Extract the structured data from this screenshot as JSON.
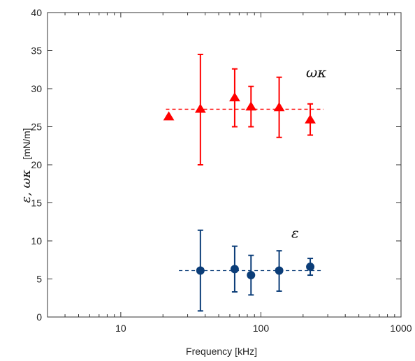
{
  "chart_data": {
    "type": "scatter",
    "xlabel": "Frequency [kHz]",
    "ylabel_symbols": "ε, ωκ",
    "ylabel_unit": "[mN/m]",
    "xscale": "log",
    "xlim": [
      3,
      1000
    ],
    "ylim": [
      0,
      40
    ],
    "x_ticks": [
      10,
      100,
      1000
    ],
    "x_tick_labels": [
      "10",
      "100",
      "1000"
    ],
    "y_ticks": [
      0,
      5,
      10,
      15,
      20,
      25,
      30,
      35,
      40
    ],
    "y_tick_labels": [
      "0",
      "5",
      "10",
      "15",
      "20",
      "25",
      "30",
      "35",
      "40"
    ],
    "grid": false,
    "series": [
      {
        "name": "ωκ",
        "marker": "triangle",
        "color": "#ff0000",
        "points": [
          {
            "x": 22,
            "y": 26.3
          },
          {
            "x": 37,
            "y": 27.3,
            "yerr_low": 20.0,
            "yerr_high": 34.5
          },
          {
            "x": 65,
            "y": 28.8,
            "yerr_low": 25.0,
            "yerr_high": 32.6
          },
          {
            "x": 85,
            "y": 27.6,
            "yerr_low": 25.0,
            "yerr_high": 30.3
          },
          {
            "x": 135,
            "y": 27.5,
            "yerr_low": 23.6,
            "yerr_high": 31.5
          },
          {
            "x": 225,
            "y": 25.9,
            "yerr_low": 23.9,
            "yerr_high": 28.0
          }
        ],
        "fit": {
          "x_start": 21,
          "x_end": 280,
          "y": 27.3
        }
      },
      {
        "name": "ε",
        "marker": "circle",
        "color": "#0b3d78",
        "points": [
          {
            "x": 37,
            "y": 6.1,
            "yerr_low": 0.8,
            "yerr_high": 11.4
          },
          {
            "x": 65,
            "y": 6.3,
            "yerr_low": 3.3,
            "yerr_high": 9.3
          },
          {
            "x": 85,
            "y": 5.5,
            "yerr_low": 2.9,
            "yerr_high": 8.1
          },
          {
            "x": 135,
            "y": 6.1,
            "yerr_low": 3.4,
            "yerr_high": 8.7
          },
          {
            "x": 225,
            "y": 6.6,
            "yerr_low": 5.5,
            "yerr_high": 7.7
          }
        ],
        "fit": {
          "x_start": 26,
          "x_end": 280,
          "y": 6.1
        }
      }
    ],
    "annotations": [
      {
        "text": "ωκ",
        "x": 210,
        "y": 31.5
      },
      {
        "text": "ε",
        "x": 165,
        "y": 10.4
      }
    ]
  }
}
